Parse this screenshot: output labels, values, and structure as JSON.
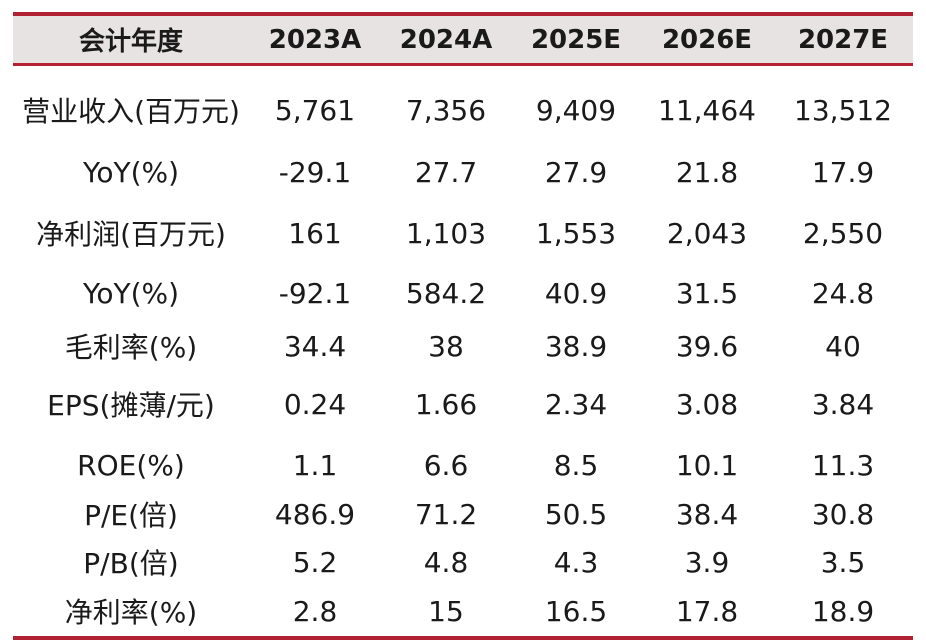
{
  "table": {
    "header": [
      "会计年度",
      "2023A",
      "2024A",
      "2025E",
      "2026E",
      "2027E"
    ],
    "rows": [
      [
        "营业收入(百万元)",
        "5,761",
        "7,356",
        "9,409",
        "11,464",
        "13,512"
      ],
      [
        "YoY(%)",
        "-29.1",
        "27.7",
        "27.9",
        "21.8",
        "17.9"
      ],
      [
        "净利润(百万元)",
        "161",
        "1,103",
        "1,553",
        "2,043",
        "2,550"
      ],
      [
        "YoY(%)",
        "-92.1",
        "584.2",
        "40.9",
        "31.5",
        "24.8"
      ],
      [
        "毛利率(%)",
        "34.4",
        "38",
        "38.9",
        "39.6",
        "40"
      ],
      [
        "EPS(摊薄/元)",
        "0.24",
        "1.66",
        "2.34",
        "3.08",
        "3.84"
      ],
      [
        "ROE(%)",
        "1.1",
        "6.6",
        "8.5",
        "10.1",
        "11.3"
      ],
      [
        "P/E(倍)",
        "486.9",
        "71.2",
        "50.5",
        "38.4",
        "30.8"
      ],
      [
        "P/B(倍)",
        "5.2",
        "4.8",
        "4.3",
        "3.9",
        "3.5"
      ],
      [
        "净利率(%)",
        "2.8",
        "15",
        "16.5",
        "17.8",
        "18.9"
      ]
    ]
  },
  "colors": {
    "rule": "#b22234",
    "header_background": "#e7e3e3"
  }
}
